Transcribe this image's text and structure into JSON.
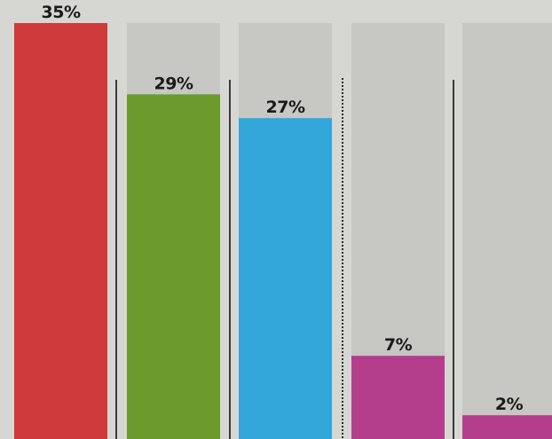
{
  "chart_data": {
    "type": "bar",
    "categories": [
      "",
      "",
      "",
      "",
      ""
    ],
    "values": [
      35,
      29,
      27,
      7,
      2
    ],
    "value_labels": [
      "35%",
      "29%",
      "27%",
      "7%",
      "2%"
    ],
    "colors": [
      "#cf3a3c",
      "#6c9a2c",
      "#33a6da",
      "#b43d8c",
      "#b43d8c"
    ],
    "background_bar_color": "#c7c7c4",
    "ylim": [
      0,
      35
    ],
    "title": "",
    "xlabel": "",
    "ylabel": "",
    "grid": false,
    "legend": "none"
  }
}
